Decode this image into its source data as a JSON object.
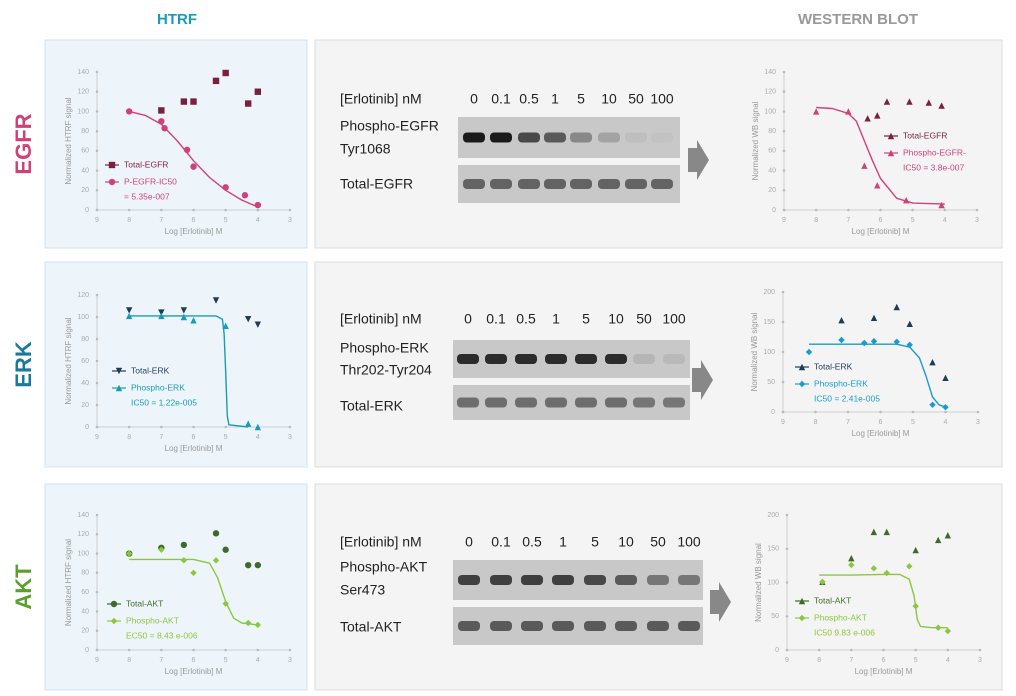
{
  "headers": {
    "htrf": "HTRF",
    "western_blot": "WESTERN BLOT"
  },
  "rows": [
    {
      "label": "EGFR",
      "blot": {
        "concentration_label": "[Erlotinib] nM",
        "concentrations": [
          "0",
          "0.1",
          "0.5",
          "1",
          "5",
          "10",
          "50",
          "100"
        ],
        "phospho_label": [
          "Phospho-EGFR",
          "Tyr1068"
        ],
        "total_label": "Total-EGFR"
      }
    },
    {
      "label": "ERK",
      "blot": {
        "concentration_label": "[Erlotinib] nM",
        "concentrations": [
          "0",
          "0.1",
          "0.5",
          "1",
          "5",
          "10",
          "50",
          "100"
        ],
        "phospho_label": [
          "Phospho-ERK",
          "Thr202-Tyr204"
        ],
        "total_label": "Total-ERK"
      }
    },
    {
      "label": "AKT",
      "blot": {
        "concentration_label": "[Erlotinib] nM",
        "concentrations": [
          "0",
          "0.1",
          "0.5",
          "1",
          "5",
          "10",
          "50",
          "100"
        ],
        "phospho_label": [
          "Phospho-AKT",
          "Ser473"
        ],
        "total_label": "Total-AKT"
      }
    }
  ],
  "chart_data": [
    {
      "type": "scatter",
      "y_label": "Normalized HTRF signal",
      "x_label": "Log [Erlotinib] M",
      "xlim": [
        9,
        3
      ],
      "xticks": [
        9,
        8,
        7,
        6,
        5,
        4,
        3
      ],
      "ylim": [
        0,
        140
      ],
      "yticks": [
        0,
        20,
        40,
        60,
        80,
        100,
        120,
        140
      ],
      "series": [
        {
          "name": "Total-EGFR",
          "color": "#7a1f3d",
          "marker": "square",
          "x": [
            7.0,
            6.3,
            6.0,
            5.3,
            5.0,
            4.3,
            4.0
          ],
          "values": [
            101,
            110,
            110,
            131,
            139,
            108,
            120
          ]
        },
        {
          "name": "P-EGFR-IC50",
          "note": "= 5.35e-007",
          "color": "#d0417a",
          "marker": "circle",
          "x": [
            8,
            7,
            6.9,
            6.2,
            6,
            5,
            4.4,
            4
          ],
          "values": [
            100,
            90,
            83,
            61,
            44,
            23,
            15,
            5
          ],
          "fit": {
            "x": [
              8,
              7.5,
              7,
              6.5,
              6,
              5.5,
              5,
              4.5,
              4
            ],
            "values": [
              100,
              96,
              87,
              70,
              50,
              33,
              20,
              10,
              3
            ]
          }
        }
      ]
    },
    {
      "type": "scatter",
      "y_label": "Normalized WB signal",
      "x_label": "Log [Erlotinib] M",
      "xlim": [
        9,
        3
      ],
      "xticks": [
        9,
        8,
        7,
        6,
        5,
        4,
        3
      ],
      "ylim": [
        0,
        140
      ],
      "yticks": [
        0,
        20,
        40,
        60,
        80,
        100,
        120,
        140
      ],
      "series": [
        {
          "name": "Total-EGFR",
          "color": "#7a1f3d",
          "marker": "triangle",
          "x": [
            6.4,
            6.1,
            5.8,
            5.1,
            4.5,
            4.1
          ],
          "values": [
            93,
            96,
            110,
            110,
            109,
            106
          ]
        },
        {
          "name": "Phospho-EGFR-",
          "note": "IC50 = 3.8e-007",
          "color": "#d0417a",
          "marker": "triangle",
          "x": [
            8,
            7,
            6.5,
            6.1,
            5.2,
            4.1
          ],
          "values": [
            100,
            100,
            45,
            25,
            10,
            5
          ],
          "fit": {
            "x": [
              8,
              7.5,
              7,
              6.75,
              6.5,
              6.25,
              6,
              5.5,
              5,
              4
            ],
            "values": [
              104,
              103,
              98,
              90,
              70,
              50,
              32,
              12,
              7,
              6
            ]
          }
        }
      ]
    },
    {
      "type": "scatter",
      "y_label": "Normalized HTRF signal",
      "x_label": "Log [Erlotinib] M",
      "xlim": [
        9,
        3
      ],
      "xticks": [
        9,
        8,
        7,
        6,
        5,
        4,
        3
      ],
      "ylim": [
        0,
        120
      ],
      "yticks": [
        0,
        20,
        40,
        60,
        80,
        100,
        120
      ],
      "series": [
        {
          "name": "Total-ERK",
          "color": "#1d3c5a",
          "marker": "triangle-down",
          "x": [
            8,
            7,
            6.3,
            5.3,
            4.3,
            4
          ],
          "values": [
            106,
            104,
            106,
            115,
            98,
            93
          ]
        },
        {
          "name": "Phospho-ERK",
          "note": "IC50 = 1.22e-005",
          "color": "#1a9bb5",
          "marker": "triangle",
          "x": [
            8,
            7,
            6.3,
            6,
            5,
            4.3,
            4
          ],
          "values": [
            101,
            101,
            100,
            97,
            92,
            3,
            0
          ],
          "fit": {
            "x": [
              8,
              6,
              5.3,
              5.1,
              5.05,
              5.0,
              4.95,
              4.9,
              4.3
            ],
            "values": [
              101,
              101,
              101,
              98,
              85,
              50,
              10,
              2,
              0
            ]
          }
        }
      ]
    },
    {
      "type": "scatter",
      "y_label": "Normalized WB signal",
      "x_label": "Log [Erlotinib] M",
      "xlim": [
        9,
        3
      ],
      "xticks": [
        9,
        8,
        7,
        6,
        5,
        4,
        3
      ],
      "ylim": [
        0,
        200
      ],
      "yticks": [
        0,
        50,
        100,
        150,
        200
      ],
      "series": [
        {
          "name": "Total-ERK",
          "color": "#1d3c5a",
          "marker": "triangle",
          "x": [
            7.2,
            6.2,
            5.5,
            5.1,
            4.4,
            4.0
          ],
          "values": [
            153,
            157,
            175,
            147,
            83,
            57
          ]
        },
        {
          "name": "Phospho-ERK",
          "note": "IC50 = 2.41e-005",
          "color": "#1a9bcf",
          "marker": "diamond",
          "x": [
            8.2,
            7.2,
            6.5,
            6.2,
            5.5,
            5.1,
            4.4,
            4.0
          ],
          "values": [
            100,
            120,
            115,
            118,
            117,
            112,
            12,
            8
          ],
          "fit": {
            "x": [
              8.2,
              7,
              6,
              5.5,
              5.1,
              4.8,
              4.6,
              4.4,
              4.2,
              4
            ],
            "values": [
              113,
              113,
              113,
              113,
              108,
              90,
              60,
              25,
              12,
              8
            ]
          }
        }
      ]
    },
    {
      "type": "scatter",
      "y_label": "Normalized HTRF signal",
      "x_label": "Log [Erlotinib] M",
      "xlim": [
        9,
        3
      ],
      "xticks": [
        9,
        8,
        7,
        6,
        5,
        4,
        3
      ],
      "ylim": [
        0,
        140
      ],
      "yticks": [
        0,
        20,
        40,
        60,
        80,
        100,
        120,
        140
      ],
      "series": [
        {
          "name": "Total-AKT",
          "color": "#3f6b2a",
          "marker": "circle",
          "x": [
            8,
            7,
            6.3,
            5.3,
            5,
            4.3,
            4
          ],
          "values": [
            100,
            106,
            109,
            121,
            104,
            88,
            88
          ]
        },
        {
          "name": "Phospho-AKT",
          "note": "EC50 = 8.43 e-006",
          "color": "#8cc63f",
          "marker": "diamond",
          "x": [
            8,
            7,
            6.3,
            6,
            5.3,
            5,
            4.3,
            4
          ],
          "values": [
            100,
            104,
            93,
            80,
            93,
            48,
            28,
            26
          ],
          "fit": {
            "x": [
              8,
              6.5,
              6,
              5.5,
              5.25,
              5,
              4.75,
              4.5,
              4
            ],
            "values": [
              94,
              94,
              94,
              90,
              75,
              50,
              33,
              28,
              26
            ]
          }
        }
      ]
    },
    {
      "type": "scatter",
      "y_label": "Normalized WB signal",
      "x_label": "Log [Erlotinib] M",
      "xlim": [
        9,
        3
      ],
      "xticks": [
        9,
        8,
        7,
        6,
        5,
        4,
        3
      ],
      "ylim": [
        0,
        200
      ],
      "yticks": [
        0,
        50,
        100,
        150,
        200
      ],
      "series": [
        {
          "name": "Total-AKT",
          "color": "#3f6b2a",
          "marker": "triangle",
          "x": [
            7.9,
            7.0,
            6.3,
            5.9,
            5.0,
            4.3,
            4.0
          ],
          "values": [
            101,
            136,
            175,
            175,
            148,
            163,
            170
          ]
        },
        {
          "name": "Phospho-AKT",
          "note": "IC50 9.83 e-006",
          "color": "#8cc63f",
          "marker": "diamond",
          "x": [
            7.9,
            7.0,
            6.3,
            5.9,
            5.2,
            5.0,
            4.3,
            4.0
          ],
          "values": [
            101,
            126,
            121,
            114,
            124,
            65,
            33,
            28
          ],
          "fit": {
            "x": [
              8,
              7,
              6,
              5.5,
              5.2,
              5.05,
              4.95,
              4.85,
              4.5,
              4
            ],
            "values": [
              111,
              111,
              112,
              112,
              105,
              80,
              45,
              35,
              33,
              33
            ]
          }
        }
      ]
    }
  ]
}
